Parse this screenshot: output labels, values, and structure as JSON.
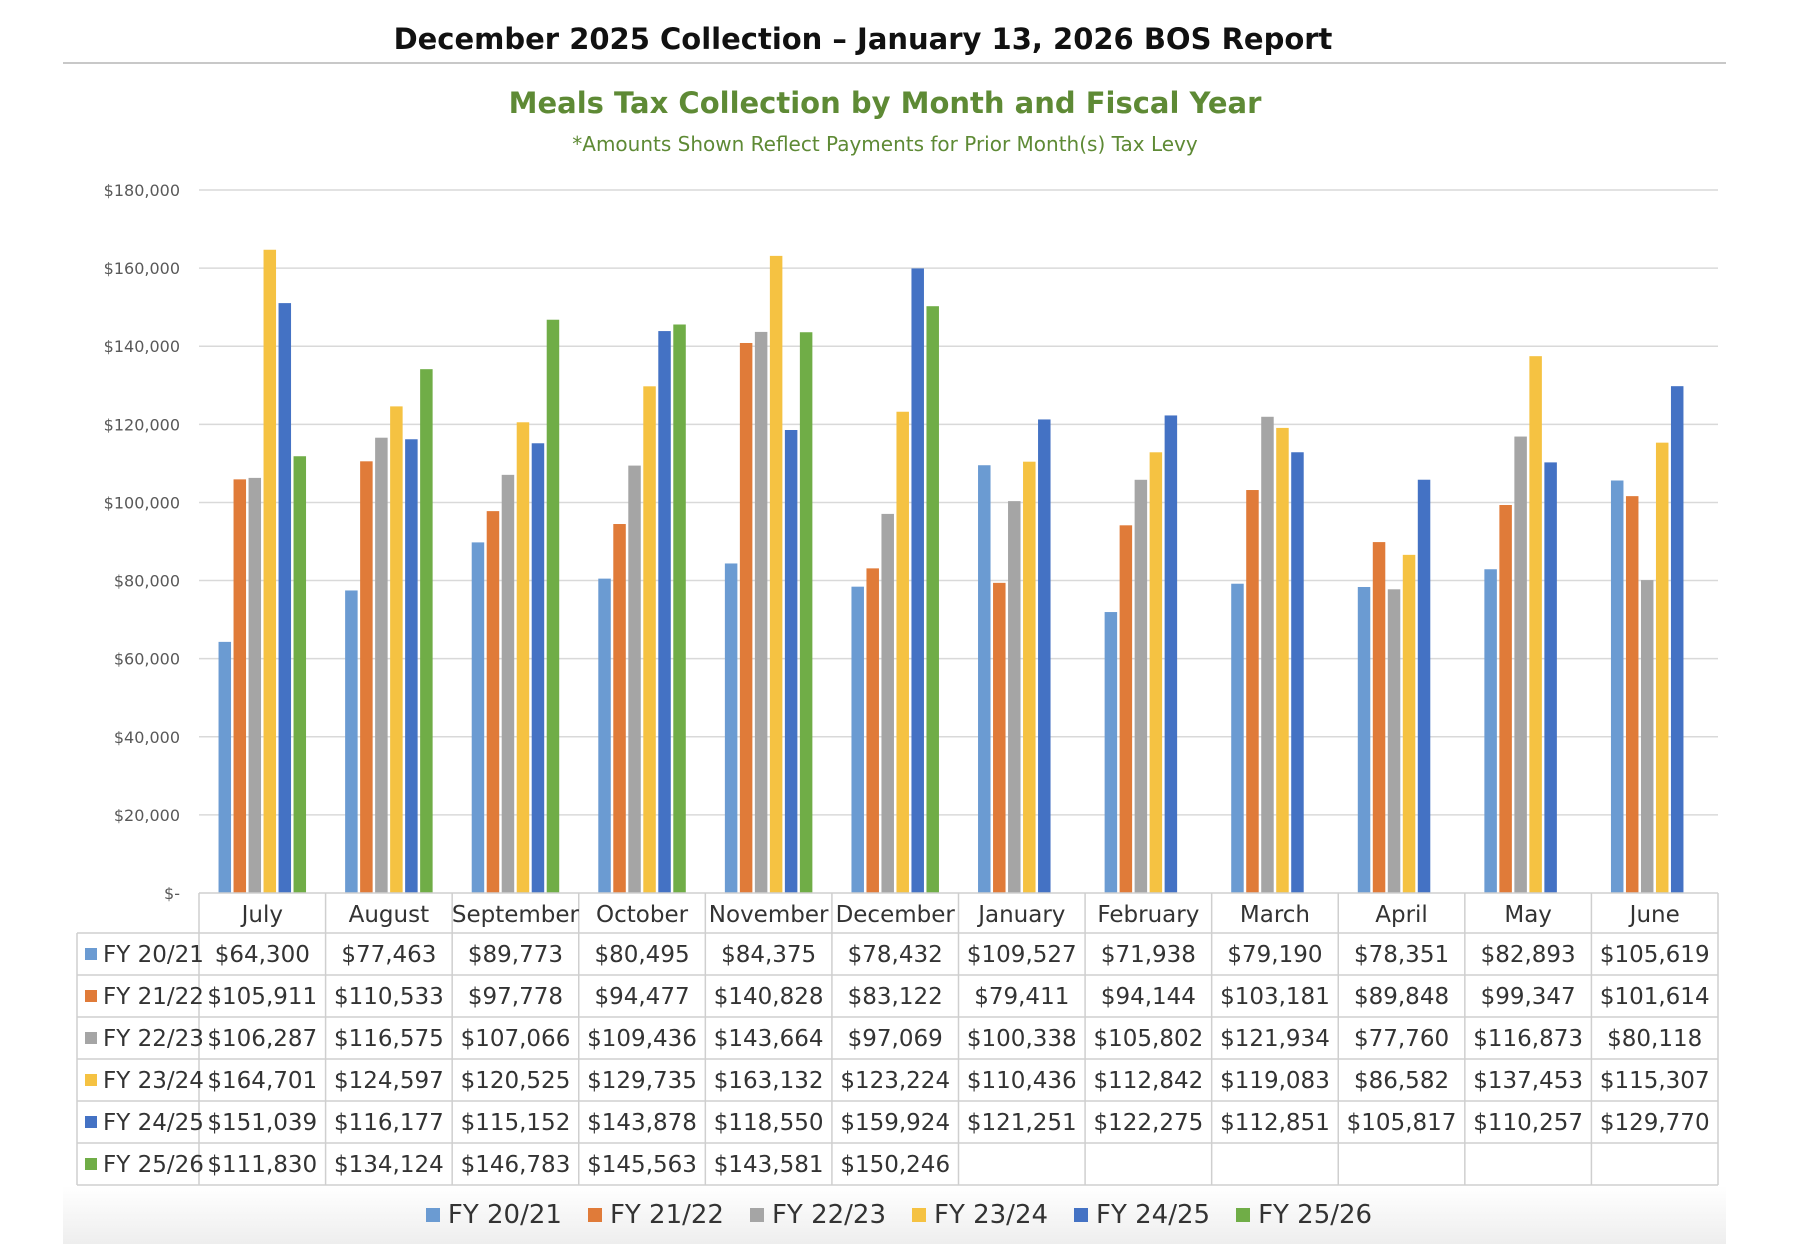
{
  "header": {
    "report_title": "December 2025 Collection – January 13, 2026 BOS Report"
  },
  "chart_data": {
    "type": "bar",
    "title": "Meals Tax Collection by Month and Fiscal Year",
    "subtitle": "*Amounts Shown Reflect Payments for Prior Month(s) Tax Levy",
    "xlabel": "",
    "ylabel": "",
    "ylim": [
      0,
      180000
    ],
    "y_ticks": [
      0,
      20000,
      40000,
      60000,
      80000,
      100000,
      120000,
      140000,
      160000,
      180000
    ],
    "y_tick_labels": [
      "$-",
      "$20,000",
      "$40,000",
      "$60,000",
      "$80,000",
      "$100,000",
      "$120,000",
      "$140,000",
      "$160,000",
      "$180,000"
    ],
    "grid": true,
    "legend_position": "bottom",
    "categories": [
      "July",
      "August",
      "September",
      "October",
      "November",
      "December",
      "January",
      "February",
      "March",
      "April",
      "May",
      "June"
    ],
    "series": [
      {
        "name": "FY 20/21",
        "color": "#6b9bd2",
        "values": [
          64300,
          77463,
          89773,
          80495,
          84375,
          78432,
          109527,
          71938,
          79190,
          78351,
          82893,
          105619
        ],
        "labels": [
          "$64,300",
          "$77,463",
          "$89,773",
          "$80,495",
          "$84,375",
          "$78,432",
          "$109,527",
          "$71,938",
          "$79,190",
          "$78,351",
          "$82,893",
          "$105,619"
        ]
      },
      {
        "name": "FY 21/22",
        "color": "#e07b39",
        "values": [
          105911,
          110533,
          97778,
          94477,
          140828,
          83122,
          79411,
          94144,
          103181,
          89848,
          99347,
          101614
        ],
        "labels": [
          "$105,911",
          "$110,533",
          "$97,778",
          "$94,477",
          "$140,828",
          "$83,122",
          "$79,411",
          "$94,144",
          "$103,181",
          "$89,848",
          "$99,347",
          "$101,614"
        ]
      },
      {
        "name": "FY 22/23",
        "color": "#a5a5a5",
        "values": [
          106287,
          116575,
          107066,
          109436,
          143664,
          97069,
          100338,
          105802,
          121934,
          77760,
          116873,
          80118
        ],
        "labels": [
          "$106,287",
          "$116,575",
          "$107,066",
          "$109,436",
          "$143,664",
          "$97,069",
          "$100,338",
          "$105,802",
          "$121,934",
          "$77,760",
          "$116,873",
          "$80,118"
        ]
      },
      {
        "name": "FY 23/24",
        "color": "#f5c242",
        "values": [
          164701,
          124597,
          120525,
          129735,
          163132,
          123224,
          110436,
          112842,
          119083,
          86582,
          137453,
          115307
        ],
        "labels": [
          "$164,701",
          "$124,597",
          "$120,525",
          "$129,735",
          "$163,132",
          "$123,224",
          "$110,436",
          "$112,842",
          "$119,083",
          "$86,582",
          "$137,453",
          "$115,307"
        ]
      },
      {
        "name": "FY 24/25",
        "color": "#4472c4",
        "values": [
          151039,
          116177,
          115152,
          143878,
          118550,
          159924,
          121251,
          122275,
          112851,
          105817,
          110257,
          129770
        ],
        "labels": [
          "$151,039",
          "$116,177",
          "$115,152",
          "$143,878",
          "$118,550",
          "$159,924",
          "$121,251",
          "$122,275",
          "$112,851",
          "$105,817",
          "$110,257",
          "$129,770"
        ]
      },
      {
        "name": "FY 25/26",
        "color": "#70ad47",
        "values": [
          111830,
          134124,
          146783,
          145563,
          143581,
          150246,
          null,
          null,
          null,
          null,
          null,
          null
        ],
        "labels": [
          "$111,830",
          "$134,124",
          "$146,783",
          "$145,563",
          "$143,581",
          "$150,246",
          "",
          "",
          "",
          "",
          "",
          ""
        ]
      }
    ]
  }
}
